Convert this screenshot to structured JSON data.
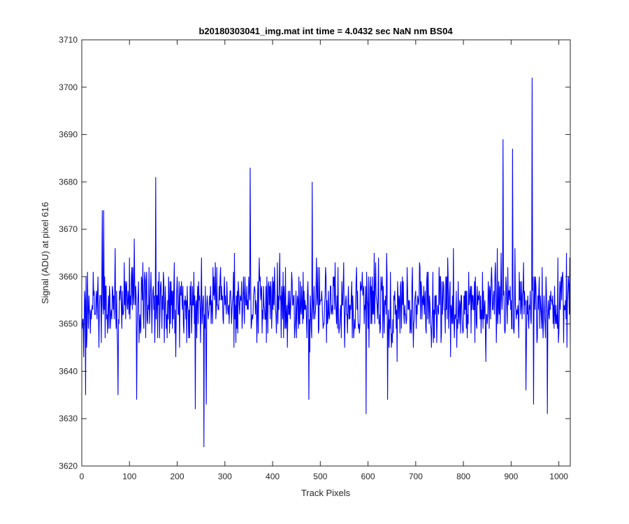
{
  "chart_data": {
    "type": "line",
    "title": "b20180303041_img.mat int time = 4.0432 sec  NaN nm BS04",
    "xlabel": "Track Pixels",
    "ylabel": "Signal (ADU) at pixel 616",
    "xlim": [
      0,
      1024
    ],
    "ylim": [
      3620,
      3710
    ],
    "xticks": [
      0,
      100,
      200,
      300,
      400,
      500,
      600,
      700,
      800,
      900,
      1000
    ],
    "yticks": [
      3620,
      3630,
      3640,
      3650,
      3660,
      3670,
      3680,
      3690,
      3700,
      3710
    ],
    "grid": false,
    "line_color": "#0000ff",
    "axis_color": "#262626",
    "series": [
      {
        "points_shown": 1024,
        "mean": 3654,
        "typical_range": [
          3638,
          3672
        ],
        "notable_points": [
          {
            "x": 7,
            "y": 3635
          },
          {
            "x": 42,
            "y": 3674
          },
          {
            "x": 45,
            "y": 3674
          },
          {
            "x": 75,
            "y": 3635
          },
          {
            "x": 114,
            "y": 3634
          },
          {
            "x": 154,
            "y": 3681
          },
          {
            "x": 237,
            "y": 3632
          },
          {
            "x": 255,
            "y": 3624
          },
          {
            "x": 260,
            "y": 3633
          },
          {
            "x": 352,
            "y": 3683
          },
          {
            "x": 475,
            "y": 3634
          },
          {
            "x": 482,
            "y": 3680
          },
          {
            "x": 595,
            "y": 3631
          },
          {
            "x": 640,
            "y": 3634
          },
          {
            "x": 882,
            "y": 3689
          },
          {
            "x": 902,
            "y": 3687
          },
          {
            "x": 930,
            "y": 3636
          },
          {
            "x": 943,
            "y": 3702
          },
          {
            "x": 946,
            "y": 3633
          },
          {
            "x": 975,
            "y": 3631
          }
        ]
      }
    ]
  }
}
